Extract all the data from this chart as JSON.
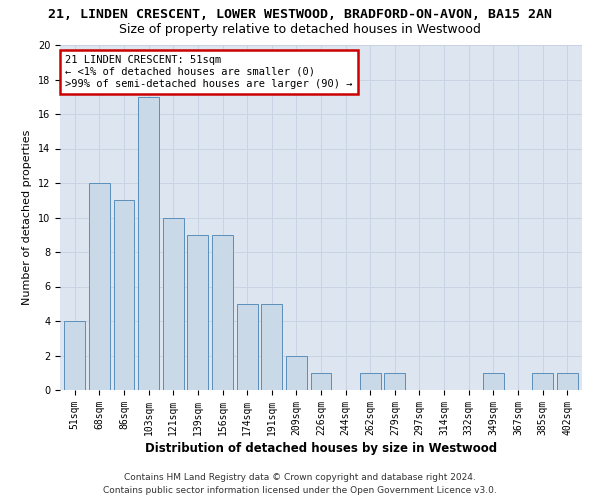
{
  "title": "21, LINDEN CRESCENT, LOWER WESTWOOD, BRADFORD-ON-AVON, BA15 2AN",
  "subtitle": "Size of property relative to detached houses in Westwood",
  "xlabel": "Distribution of detached houses by size in Westwood",
  "ylabel": "Number of detached properties",
  "categories": [
    "51sqm",
    "68sqm",
    "86sqm",
    "103sqm",
    "121sqm",
    "139sqm",
    "156sqm",
    "174sqm",
    "191sqm",
    "209sqm",
    "226sqm",
    "244sqm",
    "262sqm",
    "279sqm",
    "297sqm",
    "314sqm",
    "332sqm",
    "349sqm",
    "367sqm",
    "385sqm",
    "402sqm"
  ],
  "values": [
    4,
    12,
    11,
    17,
    10,
    9,
    9,
    5,
    5,
    2,
    1,
    0,
    1,
    1,
    0,
    0,
    0,
    1,
    0,
    1,
    1
  ],
  "bar_color": "#c9d9e8",
  "bar_edge_color": "#5a8fbb",
  "annotation_box_text": "21 LINDEN CRESCENT: 51sqm\n← <1% of detached houses are smaller (0)\n>99% of semi-detached houses are larger (90) →",
  "annotation_box_color": "#cc0000",
  "ylim": [
    0,
    20
  ],
  "yticks": [
    0,
    2,
    4,
    6,
    8,
    10,
    12,
    14,
    16,
    18,
    20
  ],
  "grid_color": "#c8d4e4",
  "bg_color": "#dde6f0",
  "footer_line1": "Contains HM Land Registry data © Crown copyright and database right 2024.",
  "footer_line2": "Contains public sector information licensed under the Open Government Licence v3.0.",
  "title_fontsize": 9.5,
  "subtitle_fontsize": 9,
  "xlabel_fontsize": 8.5,
  "ylabel_fontsize": 8,
  "tick_fontsize": 7,
  "footer_fontsize": 6.5,
  "ann_fontsize": 7.5
}
